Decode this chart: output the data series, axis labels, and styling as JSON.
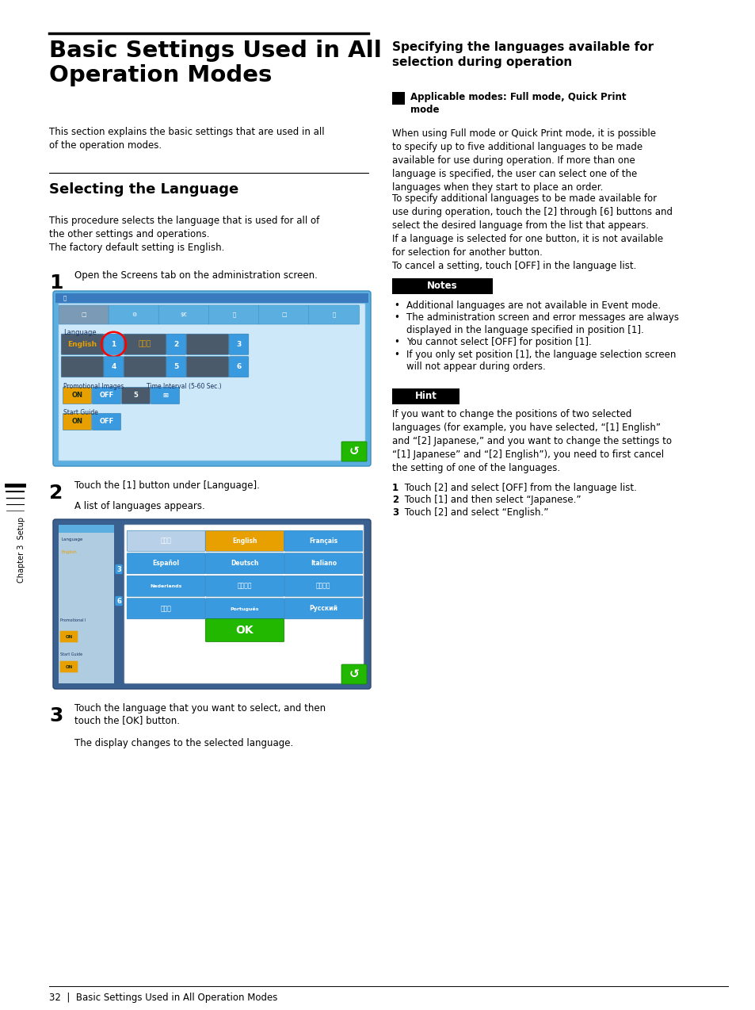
{
  "bg_color": "#ffffff",
  "page_width": 9.54,
  "page_height": 12.74,
  "main_title": "Basic Settings Used in All\nOperation Modes",
  "section1_intro": "This section explains the basic settings that are used in all\nof the operation modes.",
  "section1_title": "Selecting the Language",
  "section1_body": "This procedure selects the language that is used for all of\nthe other settings and operations.\nThe factory default setting is English.",
  "step1_num": "1",
  "step1_text": "Open the Screens tab on the administration screen.",
  "step2_num": "2",
  "step2_text": "Touch the [1] button under [Language].",
  "step2_sub": "A list of languages appears.",
  "step3_num": "3",
  "step3_text": "Touch the language that you want to select, and then\ntouch the [OK] button.",
  "step3_sub": "The display changes to the selected language.",
  "right_section_title": "Specifying the languages available for\nselection during operation",
  "right_applicable": "Applicable modes: Full mode, Quick Print\nmode",
  "right_para1": "When using Full mode or Quick Print mode, it is possible\nto specify up to five additional languages to be made\navailable for use during operation. If more than one\nlanguage is specified, the user can select one of the\nlanguages when they start to place an order.",
  "right_para2": "To specify additional languages to be made available for\nuse during operation, touch the [2] through [6] buttons and\nselect the desired language from the list that appears.\nIf a language is selected for one button, it is not available\nfor selection for another button.",
  "right_para3": "To cancel a setting, touch [OFF] in the language list.",
  "notes_title": "Notes",
  "notes_items": [
    "Additional languages are not available in Event mode.",
    "The administration screen and error messages are always\n  displayed in the language specified in position [1].",
    "You cannot select [OFF] for position [1].",
    "If you only set position [1], the language selection screen\n  will not appear during orders."
  ],
  "hint_title": "Hint",
  "hint_text": "If you want to change the positions of two selected\nlanguages (for example, you have selected, “[1] English”\nand “[2] Japanese,” and you want to change the settings to\n“[1] Japanese” and “[2] English”), you need to first cancel\nthe setting of one of the languages.\n① Touch [2] and select [OFF] from the language list.\n② Touch [1] and then select “Japanese.”\n③ Touch [2] and select “English.”",
  "hint_text_bold_prefix": [
    "1 Touch [2] and select [OFF] from the language list.",
    "2 Touch [1] and then select “Japanese.”",
    "3 Touch [2] and select “English.”"
  ],
  "footer_text": "32  |  Basic Settings Used in All Operation Modes",
  "sidebar_text": "Chapter 3  Setup"
}
